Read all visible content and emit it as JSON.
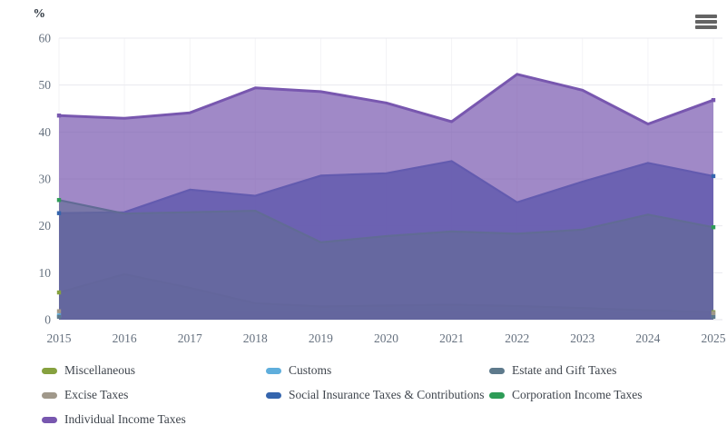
{
  "chart": {
    "value_axis_title": "%",
    "x_axis_labels": [
      "2015",
      "2016",
      "2017",
      "2018",
      "2019",
      "2020",
      "2021",
      "2022",
      "2023",
      "2024",
      "2025"
    ],
    "y_axis_labels": [
      "0",
      "10",
      "20",
      "30",
      "40",
      "50",
      "60"
    ],
    "menu_icon": "hamburger-icon",
    "colors": {
      "axis_text": "#66717F",
      "legend_text": "#3F454D",
      "gridline": "#EAEAEF",
      "menu_icon": "#646464"
    }
  },
  "chart_data": {
    "type": "area",
    "title": "",
    "xlabel": "",
    "ylabel": "%",
    "x": [
      2015,
      2016,
      2017,
      2018,
      2019,
      2020,
      2021,
      2022,
      2023,
      2024,
      2025
    ],
    "ylim": [
      0,
      60
    ],
    "y_ticks": [
      0,
      10,
      20,
      30,
      40,
      50,
      60
    ],
    "grid": true,
    "legend_position": "bottom",
    "layering": "overlapping translucent areas drawn in series order; Individual Income Taxes on top",
    "series": [
      {
        "name": "Miscellaneous",
        "color": "#86A13F",
        "values": [
          5.8,
          9.7,
          6.8,
          3.5,
          2.8,
          3.0,
          3.2,
          2.9,
          2.5,
          2.0,
          1.6
        ]
      },
      {
        "name": "Customs",
        "color": "#5FAEDC",
        "values": [
          0.9,
          0.9,
          0.9,
          1.0,
          1.1,
          1.1,
          1.0,
          1.0,
          0.9,
          0.8,
          0.7
        ]
      },
      {
        "name": "Estate and Gift Taxes",
        "color": "#5E7A8C",
        "values": [
          0.6,
          0.6,
          0.7,
          0.6,
          0.6,
          0.6,
          0.6,
          0.7,
          0.6,
          0.6,
          0.6
        ]
      },
      {
        "name": "Excise Taxes",
        "color": "#A0988A",
        "values": [
          1.8,
          1.8,
          1.8,
          1.7,
          1.7,
          1.6,
          1.6,
          1.5,
          1.5,
          1.4,
          1.4
        ]
      },
      {
        "name": "Social Insurance Taxes & Contributions",
        "color": "#3565AD",
        "values": [
          22.7,
          22.9,
          27.7,
          26.4,
          30.7,
          31.2,
          33.8,
          25.0,
          29.4,
          33.4,
          30.6
        ]
      },
      {
        "name": "Corporation Income Taxes",
        "color": "#2E9C57",
        "values": [
          25.5,
          22.6,
          22.9,
          23.2,
          16.5,
          17.8,
          18.8,
          18.3,
          19.2,
          22.4,
          19.7
        ]
      },
      {
        "name": "Individual Income Taxes",
        "color": "#7857AF",
        "values": [
          43.5,
          42.9,
          44.1,
          49.4,
          48.6,
          46.2,
          42.2,
          52.3,
          48.9,
          41.7,
          46.8
        ]
      }
    ]
  }
}
